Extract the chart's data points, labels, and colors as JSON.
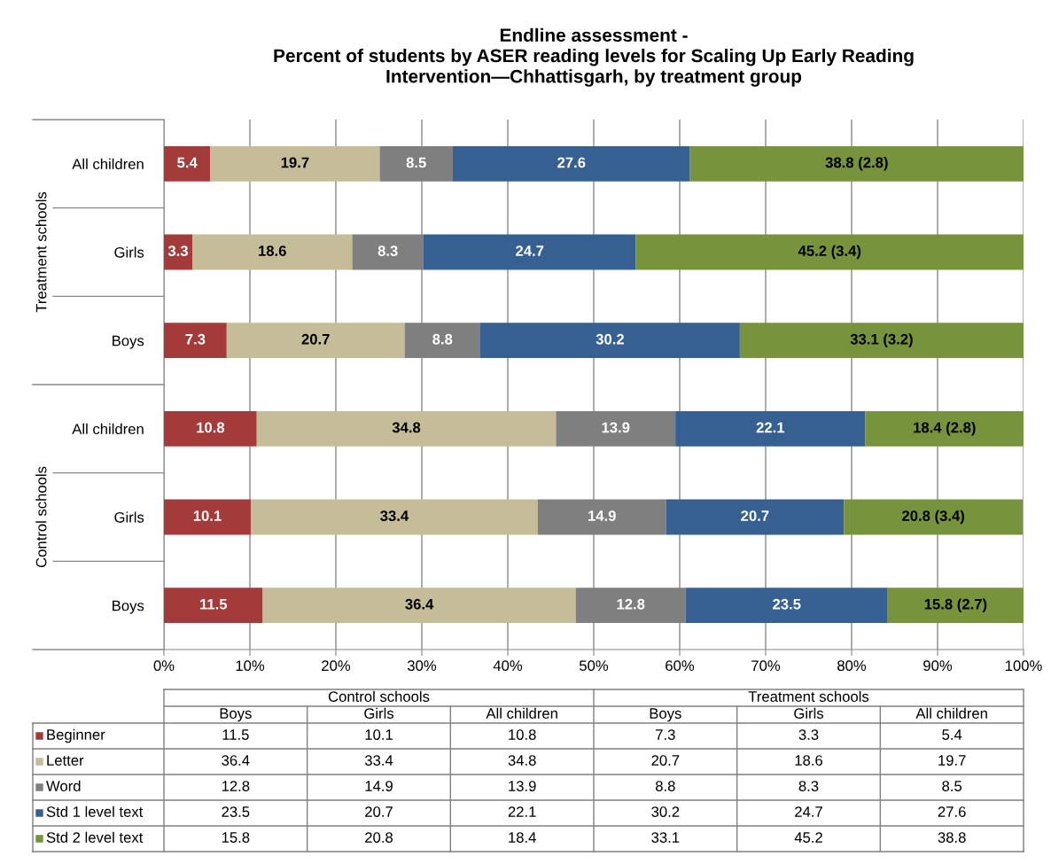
{
  "chart_data": {
    "type": "bar",
    "orientation": "horizontal",
    "stacked": true,
    "title": "Endline assessment -\nPercent of students by ASER reading levels for Scaling Up Early Reading\nIntervention—Chhattisgarh, by treatment group",
    "categories": [
      "All children",
      "Girls",
      "Boys",
      "All children",
      "Girls",
      "Boys"
    ],
    "annotations": [
      "Treatment schools",
      "Control schools",
      "11.5",
      "10.1",
      "10.8",
      "7.3",
      "3.3",
      "5.4",
      "36.4",
      "33.4",
      "34.8",
      "20.7",
      "18.6",
      "19.7",
      "12.8",
      "14.9",
      "13.9",
      "8.8",
      "8.3",
      "8.5",
      "23.5",
      "20.7",
      "22.1",
      "30.2",
      "24.7",
      "27.6",
      "15.8",
      "20.8",
      "18.4",
      "33.1",
      "45.2",
      "38.8"
    ],
    "series": [
      {
        "name": "Beginner",
        "color": "#a33b3b",
        "values": [
          5.4,
          3.3,
          7.3,
          10.8,
          10.1,
          11.5
        ],
        "value_labels": [
          "5.4",
          "3.3",
          "7.3",
          "10.8",
          "10.1",
          "11.5"
        ]
      },
      {
        "name": "Letter",
        "color": "#c4bd97",
        "values": [
          19.7,
          18.6,
          20.7,
          34.8,
          33.4,
          36.4
        ],
        "value_labels": [
          "19.7",
          "18.6",
          "20.7",
          "34.8",
          "33.4",
          "36.4"
        ]
      },
      {
        "name": "Word",
        "color": "#7f7f7f",
        "values": [
          8.5,
          8.3,
          8.8,
          13.9,
          14.9,
          12.8
        ],
        "value_labels": [
          "8.5",
          "8.3",
          "8.8",
          "13.9",
          "14.9",
          "12.8"
        ]
      },
      {
        "name": "Std 1 level text",
        "color": "#376092",
        "values": [
          27.6,
          24.7,
          30.2,
          22.1,
          20.7,
          23.5
        ],
        "value_labels": [
          "27.6",
          "24.7",
          "30.2",
          "22.1",
          "20.7",
          "23.5"
        ]
      },
      {
        "name": "Std 2 level text",
        "color": "#77933c",
        "values": [
          38.8,
          45.2,
          33.1,
          18.4,
          20.8,
          15.8
        ],
        "value_labels": [
          "38.8 (2.8)",
          "45.2 (3.4)",
          "33.1 (3.2)",
          "18.4 (2.8)",
          "20.8 (3.4)",
          "15.8 (2.7)"
        ]
      }
    ],
    "xlim": [
      0,
      100
    ],
    "xticks": [
      {
        "value": 0,
        "label": "0%"
      },
      {
        "value": 10,
        "label": "10%"
      },
      {
        "value": 20,
        "label": "20%"
      },
      {
        "value": 30,
        "label": "30%"
      },
      {
        "value": 40,
        "label": "40%"
      },
      {
        "value": 50,
        "label": "50%"
      },
      {
        "value": 60,
        "label": "60%"
      },
      {
        "value": 70,
        "label": "70%"
      },
      {
        "value": 80,
        "label": "80%"
      },
      {
        "value": 90,
        "label": "90%"
      },
      {
        "value": 100,
        "label": "100%"
      }
    ],
    "grid": "x",
    "legend": "bottom left"
  }
}
